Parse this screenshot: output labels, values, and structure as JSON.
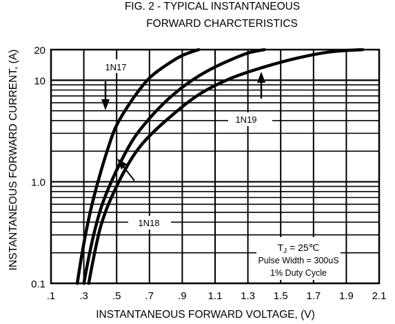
{
  "chart_data": {
    "type": "line",
    "title_lines": [
      "FIG. 2 - TYPICAL INSTANTANEOUS",
      "FORWARD CHARCTERISTICS"
    ],
    "xlabel": "INSTANTANEOUS FORWARD VOLTAGE, (V)",
    "ylabel": "INSTANTANEOUS FORWARD CURRENT, (A)",
    "x_scale": "linear",
    "y_scale": "log",
    "xlim": [
      0.1,
      2.1
    ],
    "ylim": [
      0.1,
      20
    ],
    "grid": true,
    "x_ticks": [
      {
        "value": 0.1,
        "label": ".1"
      },
      {
        "value": 0.3,
        "label": ".3"
      },
      {
        "value": 0.5,
        "label": ".5"
      },
      {
        "value": 0.7,
        "label": ".7"
      },
      {
        "value": 0.9,
        "label": ".9"
      },
      {
        "value": 1.1,
        "label": "1.1"
      },
      {
        "value": 1.3,
        "label": "1.3"
      },
      {
        "value": 1.5,
        "label": "1.5"
      },
      {
        "value": 1.7,
        "label": "1.7"
      },
      {
        "value": 1.9,
        "label": "1.9"
      },
      {
        "value": 2.1,
        "label": "2.1"
      }
    ],
    "y_ticks": [
      {
        "value": 0.1,
        "label": "0.1"
      },
      {
        "value": 1.0,
        "label": "1.0"
      },
      {
        "value": 10,
        "label": "10"
      },
      {
        "value": 20,
        "label": "20"
      }
    ],
    "series": [
      {
        "name": "1N17",
        "x": [
          0.26,
          0.28,
          0.31,
          0.35,
          0.4,
          0.45,
          0.5,
          0.6,
          0.7,
          0.8,
          0.9,
          1.0
        ],
        "y": [
          0.1,
          0.16,
          0.3,
          0.6,
          1.2,
          2.2,
          3.6,
          6.6,
          10.5,
          14,
          17.5,
          20
        ]
      },
      {
        "name": "1N18",
        "x": [
          0.3,
          0.33,
          0.37,
          0.42,
          0.5,
          0.6,
          0.7,
          0.8,
          0.9,
          1.0,
          1.1,
          1.2,
          1.3,
          1.4
        ],
        "y": [
          0.1,
          0.18,
          0.35,
          0.65,
          1.3,
          2.6,
          4.2,
          6.2,
          8.5,
          11,
          13.5,
          16,
          18.5,
          20
        ]
      },
      {
        "name": "1N19",
        "x": [
          0.33,
          0.36,
          0.4,
          0.45,
          0.55,
          0.65,
          0.8,
          1.0,
          1.2,
          1.4,
          1.6,
          1.8,
          2.0
        ],
        "y": [
          0.1,
          0.18,
          0.35,
          0.6,
          1.3,
          2.3,
          4.0,
          7.2,
          10.5,
          13.5,
          16.5,
          19,
          20
        ]
      }
    ],
    "curve_labels": [
      "1N17",
      "1N18",
      "1N19"
    ],
    "annotation": {
      "line1_main": "T",
      "line1_sub": "J",
      "line1_rest": " = 25℃",
      "line2": "Pulse Width = 300uS",
      "line3": "1% Duty Cycle"
    }
  }
}
